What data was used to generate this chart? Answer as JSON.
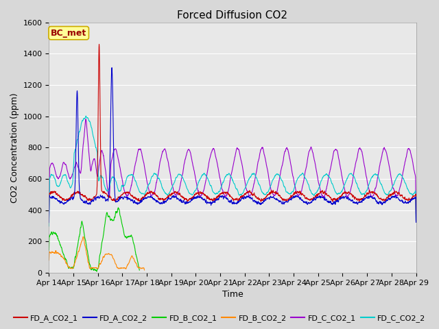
{
  "title": "Forced Diffusion CO2",
  "xlabel": "Time",
  "ylabel": "CO2 Concentration (ppm)",
  "ylim": [
    0,
    1600
  ],
  "yticks": [
    0,
    200,
    400,
    600,
    800,
    1000,
    1200,
    1400,
    1600
  ],
  "x_tick_labels": [
    "Apr 14",
    "Apr 15",
    "Apr 16",
    "Apr 17",
    "Apr 18",
    "Apr 19",
    "Apr 20",
    "Apr 21",
    "Apr 22",
    "Apr 23",
    "Apr 24",
    "Apr 25",
    "Apr 26",
    "Apr 27",
    "Apr 28",
    "Apr 29"
  ],
  "series_colors": {
    "FD_A_CO2_1": "#cc0000",
    "FD_A_CO2_2": "#0000cc",
    "FD_B_CO2_1": "#00cc00",
    "FD_B_CO2_2": "#ff8800",
    "FD_C_CO2_1": "#9900cc",
    "FD_C_CO2_2": "#00cccc"
  },
  "legend_entries": [
    "FD_A_CO2_1",
    "FD_A_CO2_2",
    "FD_B_CO2_1",
    "FD_B_CO2_2",
    "FD_C_CO2_1",
    "FD_C_CO2_2"
  ],
  "annotation_text": "BC_met",
  "annotation_box_color": "#ffff99",
  "annotation_box_edge": "#ccaa00",
  "annotation_text_color": "#990000",
  "background_color": "#e8e8e8",
  "grid_color": "#ffffff",
  "title_fontsize": 11,
  "label_fontsize": 9,
  "tick_fontsize": 8,
  "legend_fontsize": 8,
  "linewidth": 0.8
}
